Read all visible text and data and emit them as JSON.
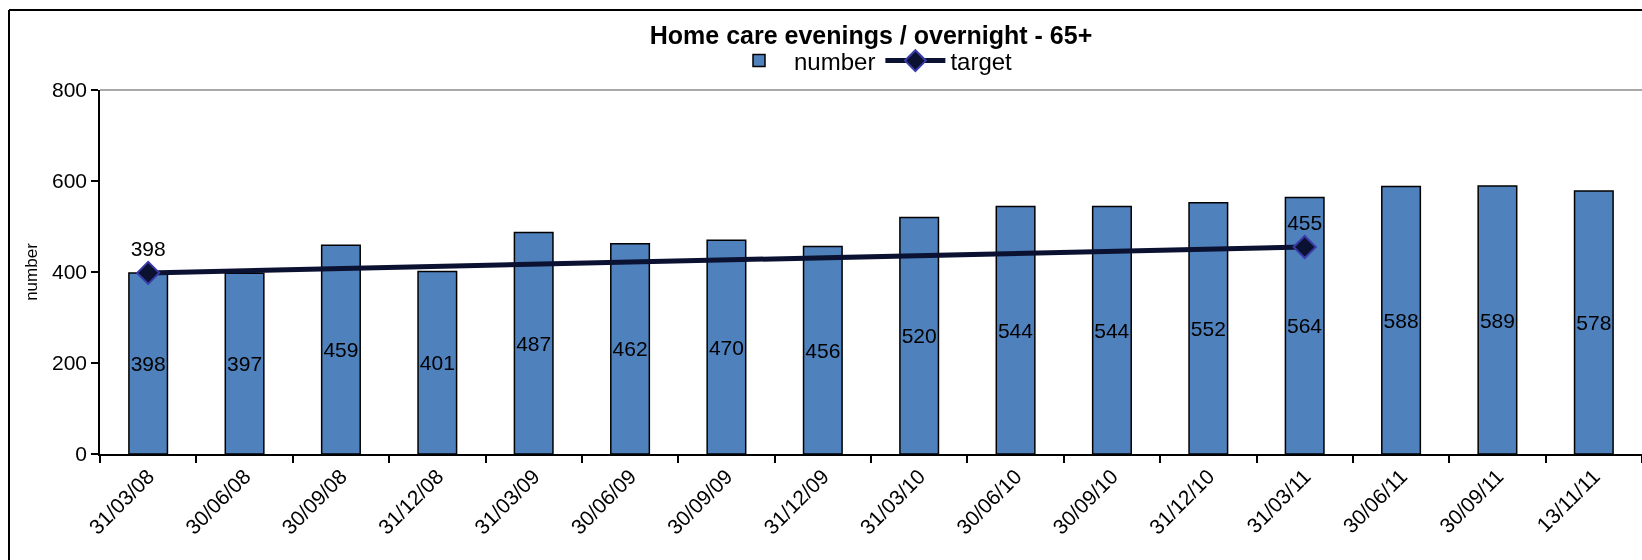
{
  "chart_data": {
    "type": "bar",
    "title": "Home care evenings / overnight - 65+",
    "ylabel": "number",
    "categories": [
      "31/03/08",
      "30/06/08",
      "30/09/08",
      "31/12/08",
      "31/03/09",
      "30/06/09",
      "30/09/09",
      "31/12/09",
      "31/03/10",
      "30/06/10",
      "30/09/10",
      "31/12/10",
      "31/03/11",
      "30/06/11",
      "30/09/11",
      "13/11/11"
    ],
    "series": [
      {
        "name": "number",
        "color": "#4f81bd",
        "values": [
          398,
          397,
          459,
          401,
          487,
          462,
          470,
          456,
          520,
          544,
          544,
          552,
          564,
          588,
          589,
          578
        ]
      },
      {
        "name": "target",
        "type": "line",
        "color": "#0b1130",
        "x": [
          "31/03/08",
          "31/03/11"
        ],
        "values": [
          398,
          455
        ]
      }
    ],
    "ylim": [
      0,
      800
    ],
    "yticks": [
      0,
      200,
      400,
      600,
      800
    ],
    "data_labels": true,
    "legend": "top",
    "marker": "diamond"
  }
}
